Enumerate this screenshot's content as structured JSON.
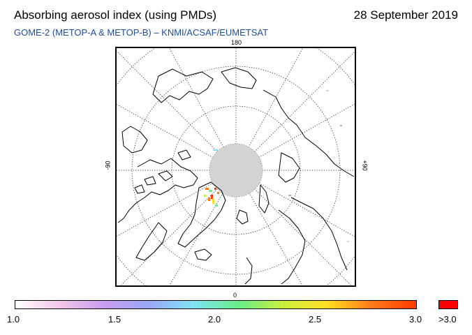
{
  "header": {
    "title": "Absorbing aerosol index (using PMDs)",
    "date": "28 September 2019",
    "subtitle": "GOME-2 (METOP-A & METOP-B)  –  KNMI/ACSAF/EUMETSAT"
  },
  "map": {
    "projection": "polar stereographic (north pole)",
    "longitude_labels": {
      "top": "180",
      "left": "-90",
      "right": "+90",
      "bottom": "0"
    },
    "no_data_color": "#d3d3d3",
    "coastline_color": "#000000",
    "graticule_color": "#000000"
  },
  "colorbar": {
    "min_label": "1.0",
    "tick_labels": [
      "1.0",
      "1.5",
      "2.0",
      "2.5",
      "3.0"
    ],
    "overflow_label": ">3.0",
    "overflow_color": "#ff0000",
    "gradient_colors": [
      "#ffffff",
      "#f4c6ea",
      "#c79cf0",
      "#9aa8f8",
      "#7fe3f4",
      "#66ee88",
      "#c8f03c",
      "#ffdd22",
      "#ff7a1a",
      "#ff3a00"
    ]
  }
}
